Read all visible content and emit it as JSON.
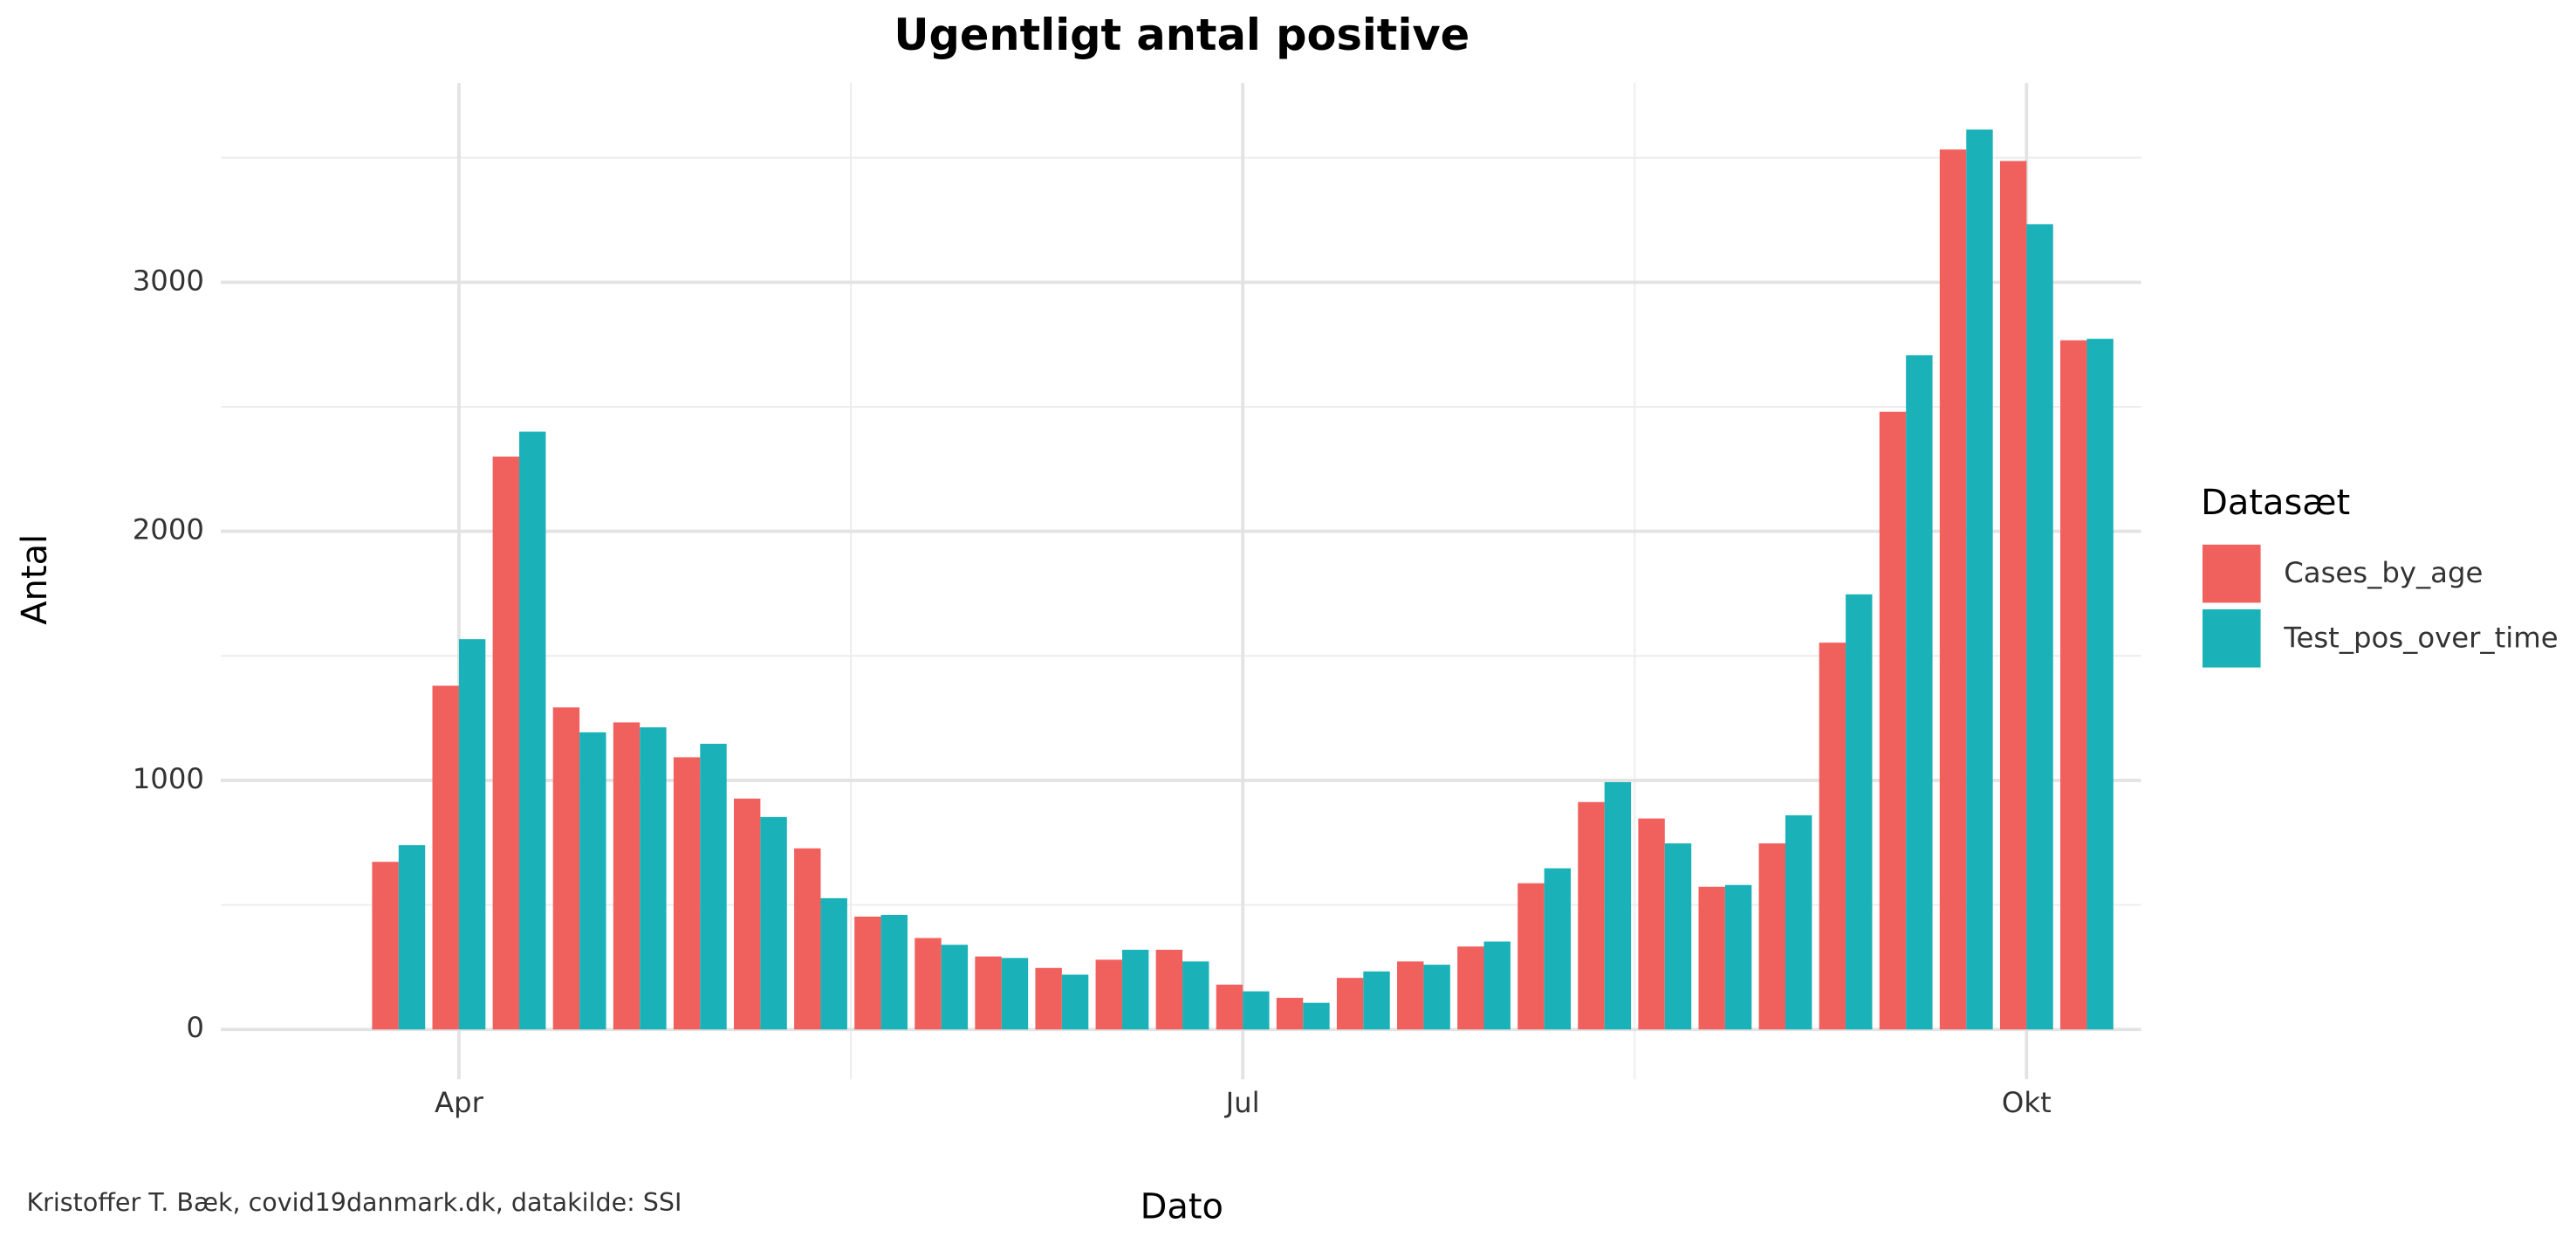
{
  "chart_data": {
    "type": "bar",
    "title": "Ugentligt antal positive",
    "x_label": "Dato",
    "y_label": "Antal",
    "legend_title": "Datasæt",
    "caption": "Kristoffer T. Bæk, covid19danmark.dk, datakilde: SSI",
    "categories": [
      null,
      "Apr",
      null,
      null,
      null,
      null,
      null,
      null,
      null,
      null,
      null,
      null,
      null,
      null,
      "Jul",
      null,
      null,
      null,
      null,
      null,
      null,
      null,
      null,
      null,
      null,
      null,
      null,
      "Okt",
      null
    ],
    "series": [
      {
        "name": "Cases_by_age",
        "color": "#F0605D",
        "values": [
          673,
          1380,
          2300,
          1293,
          1233,
          1093,
          927,
          727,
          453,
          367,
          293,
          247,
          280,
          320,
          180,
          127,
          207,
          273,
          333,
          587,
          913,
          847,
          573,
          747,
          1553,
          2480,
          3533,
          3487,
          2767
        ]
      },
      {
        "name": "Test_pos_over_time",
        "color": "#1AB2B8",
        "values": [
          740,
          1567,
          2400,
          1193,
          1213,
          1147,
          853,
          527,
          460,
          340,
          287,
          220,
          320,
          273,
          153,
          107,
          233,
          260,
          353,
          647,
          993,
          747,
          580,
          860,
          1747,
          2707,
          3613,
          3233,
          2773
        ]
      }
    ],
    "ylim": [
      -200,
      3800
    ],
    "yticks": [
      0,
      1000,
      2000,
      3000
    ],
    "grid": true,
    "legend": "right"
  }
}
